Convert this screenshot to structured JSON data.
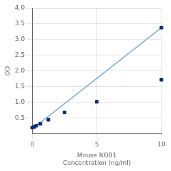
{
  "chart_data": {
    "type": "scatter",
    "xlabel": "Mouse NOB1\nConcentration (ng/ml)",
    "ylabel": "OD",
    "series": [
      {
        "type": "line",
        "color": "#7ab0d4",
        "line_style": "solid",
        "x": [
          0.0,
          10.0
        ],
        "values": [
          0.15,
          3.38
        ]
      },
      {
        "type": "scatter",
        "color": "#0a2e6e",
        "marker": "square",
        "x": [
          0.0,
          0.156,
          0.313,
          0.625,
          1.25,
          2.5,
          5.0,
          10.0,
          10.0
        ],
        "values": [
          0.198,
          0.22,
          0.257,
          0.32,
          0.45,
          0.68,
          1.02,
          1.72,
          3.38
        ]
      }
    ],
    "xlim": [
      0,
      10
    ],
    "xticks": [
      0,
      5,
      10
    ],
    "ylim": [
      0,
      4
    ],
    "yticks": [
      0.5,
      {
        "value": 1.0,
        "label": "1.0"
      },
      1.5,
      {
        "value": 2.0,
        "label": "2.0"
      },
      2.5,
      {
        "value": 3.0,
        "label": "3.0"
      },
      3.5,
      {
        "value": 4.0,
        "label": "4.0"
      }
    ],
    "grid": true
  }
}
